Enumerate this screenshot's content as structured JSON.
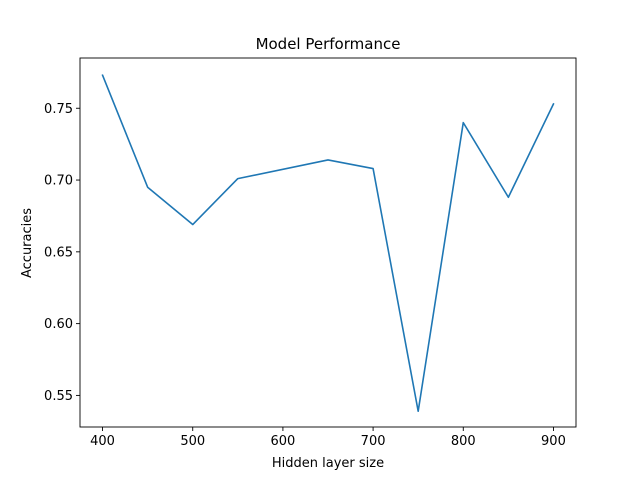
{
  "chart_data": {
    "type": "line",
    "title": "Model Performance",
    "xlabel": "Hidden layer size",
    "ylabel": "Accuracies",
    "xlim": [
      375,
      925
    ],
    "ylim": [
      0.528,
      0.785
    ],
    "x_ticks": [
      400,
      500,
      600,
      700,
      800,
      900
    ],
    "y_ticks": [
      0.55,
      0.6,
      0.65,
      0.7,
      0.75
    ],
    "x_tick_labels": [
      "400",
      "500",
      "600",
      "700",
      "800",
      "900"
    ],
    "y_tick_labels": [
      "0.55",
      "0.60",
      "0.65",
      "0.70",
      "0.75"
    ],
    "grid": false,
    "series": [
      {
        "color": "#1f77b4",
        "x": [
          400,
          450,
          500,
          550,
          650,
          700,
          750,
          800,
          850,
          900
        ],
        "y": [
          0.773,
          0.695,
          0.669,
          0.701,
          0.714,
          0.708,
          0.539,
          0.74,
          0.688,
          0.753
        ]
      }
    ]
  }
}
